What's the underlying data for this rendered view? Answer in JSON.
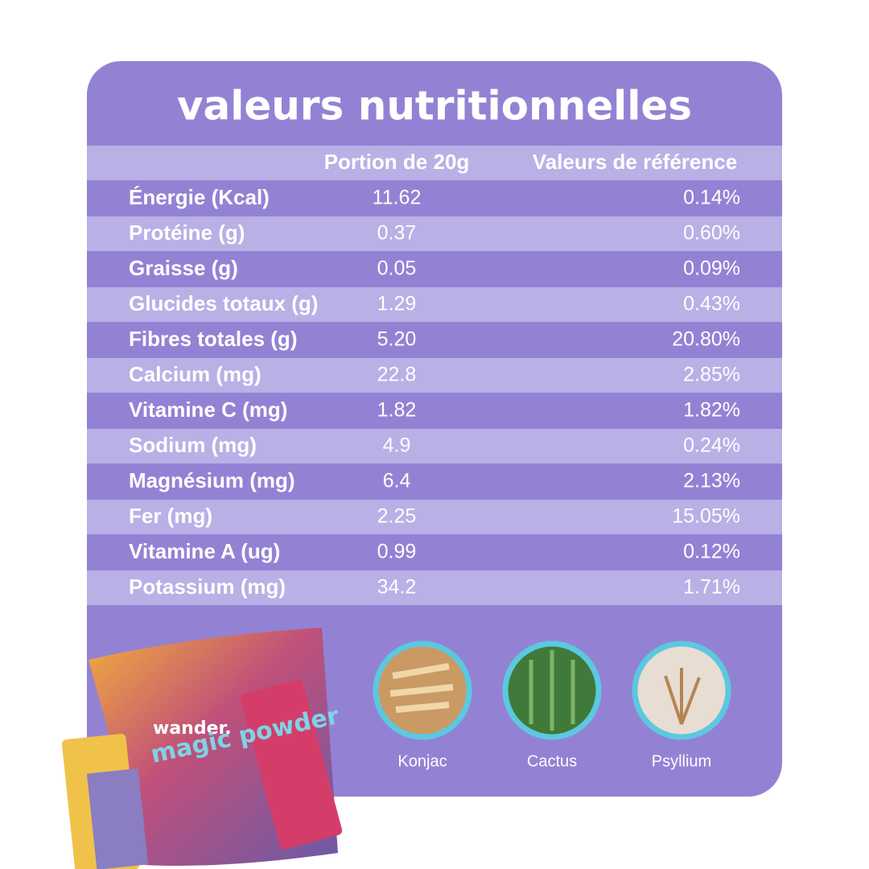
{
  "header": {
    "title": "valeurs nutritionnelles"
  },
  "table": {
    "columns": [
      "Portion de 20g",
      "Valeurs de référence"
    ],
    "rows": [
      [
        "Énergie (Kcal)",
        "11.62",
        "0.14%"
      ],
      [
        "Protéine (g)",
        "0.37",
        "0.60%"
      ],
      [
        "Graisse (g)",
        "0.05",
        "0.09%"
      ],
      [
        "Glucides totaux (g)",
        "1.29",
        "0.43%"
      ],
      [
        "Fibres totales (g)",
        "5.20",
        "20.80%"
      ],
      [
        "Calcium (mg)",
        "22.8",
        "2.85%"
      ],
      [
        "Vitamine C (mg)",
        "1.82",
        "1.82%"
      ],
      [
        "Sodium (mg)",
        "4.9",
        "0.24%"
      ],
      [
        "Magnésium (mg)",
        "6.4",
        "2.13%"
      ],
      [
        "Fer (mg)",
        "2.25",
        "15.05%"
      ],
      [
        "Vitamine A (ug)",
        "0.99",
        "0.12%"
      ],
      [
        "Potassium (mg)",
        "34.2",
        "1.71%"
      ]
    ]
  },
  "ingredients": [
    "Konjac",
    "Cactus",
    "Psyllium"
  ],
  "product": {
    "brand": "wander.",
    "name": "magic powder"
  }
}
